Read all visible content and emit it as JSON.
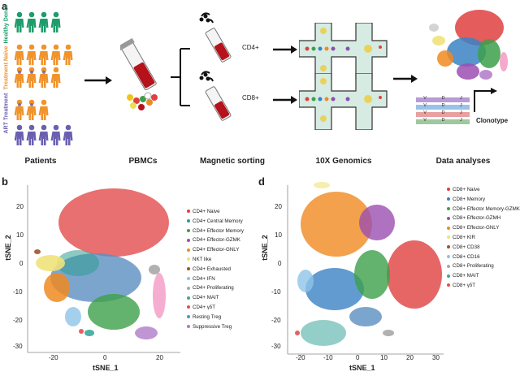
{
  "panel_a": {
    "letter": "a",
    "groups": [
      {
        "label": "Healthy Donor",
        "color": "#1f9c6b"
      },
      {
        "label": "Treatment Naive",
        "color": "#f0932b"
      },
      {
        "label": "ART Treatment",
        "color": "#6a5fb0"
      }
    ],
    "steps": [
      "Patients",
      "PBMCs",
      "Magnetic sorting",
      "10X Genomics",
      "Data analyses"
    ],
    "branches": [
      "CD4+",
      "CD8+"
    ],
    "vdj": [
      "V",
      "D",
      "J"
    ],
    "clonotype": "Clonotype"
  },
  "panel_b": {
    "letter": "b",
    "xlabel": "tSNE_1",
    "ylabel": "tSNE_2",
    "xticks": [
      "-20",
      "0",
      "20"
    ],
    "yticks": [
      "20",
      "10",
      "0",
      "-10",
      "-20",
      "-30"
    ],
    "legend": [
      {
        "label": "CD4+ Naive",
        "color": "#e04040"
      },
      {
        "label": "CD4+ Central Memory",
        "color": "#2d9d8f"
      },
      {
        "label": "CD4+ Effector Memory",
        "color": "#3ca04a"
      },
      {
        "label": "CD4+ Effector-GZMK",
        "color": "#9b4fb0"
      },
      {
        "label": "CD4+ Effector-GNLY",
        "color": "#f08a20"
      },
      {
        "label": "NKT like",
        "color": "#efe27a"
      },
      {
        "label": "CD4+ Exhausted",
        "color": "#a0522d"
      },
      {
        "label": "CD4+ IFN",
        "color": "#8fc4e8"
      },
      {
        "label": "CD4+ Proliferating",
        "color": "#a8a8a8"
      },
      {
        "label": "CD4+ MAIT",
        "color": "#3aa89a"
      },
      {
        "label": "CD4+ γδT",
        "color": "#e05050"
      },
      {
        "label": "Resting Treg",
        "color": "#5b8fc0"
      },
      {
        "label": "Suppressive Treg",
        "color": "#b07ac8"
      }
    ]
  },
  "panel_d": {
    "letter": "d",
    "xlabel": "tSNE_1",
    "ylabel": "tSNE_2",
    "xticks": [
      "-20",
      "-10",
      "0",
      "10",
      "20",
      "30"
    ],
    "yticks": [
      "20",
      "10",
      "0",
      "-10",
      "-20",
      "-30"
    ],
    "legend": [
      {
        "label": "CD8+ Naive",
        "color": "#e04040"
      },
      {
        "label": "CD8+ Memory",
        "color": "#3b82c4"
      },
      {
        "label": "CD8+ Effector Memory-GZMK",
        "color": "#3ca04a"
      },
      {
        "label": "CD8+ Effector-GZMH",
        "color": "#9b4fb0"
      },
      {
        "label": "CD8+ Effector-GNLY",
        "color": "#f08a20"
      },
      {
        "label": "CD8+ KIR",
        "color": "#efe27a"
      },
      {
        "label": "CD8+ CD38",
        "color": "#a0522d"
      },
      {
        "label": "CD8+ CD16",
        "color": "#8fc4e8"
      },
      {
        "label": "CD8+ Proliferating",
        "color": "#a8a8a8"
      },
      {
        "label": "CD8+ MAIT",
        "color": "#3aa89a"
      },
      {
        "label": "CD8+ γδT",
        "color": "#e05050"
      }
    ]
  }
}
